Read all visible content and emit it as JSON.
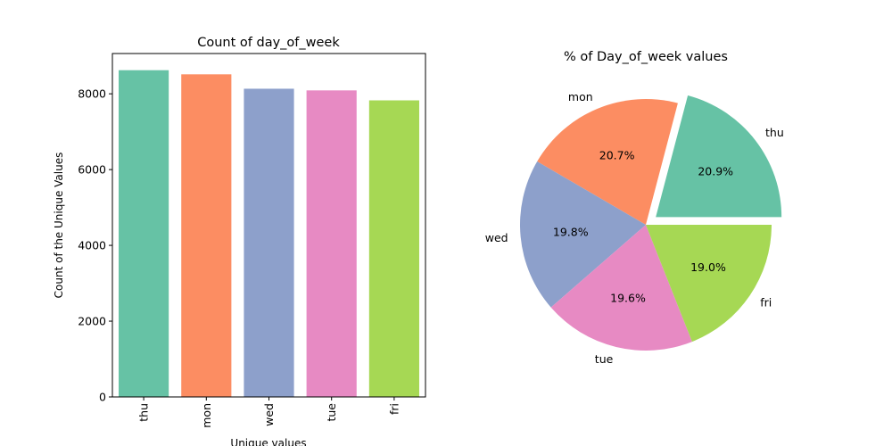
{
  "chart_data": [
    {
      "type": "bar",
      "title": "Count of day_of_week",
      "xlabel": "Unique values",
      "ylabel": "Count of the Unique Values",
      "categories": [
        "thu",
        "mon",
        "wed",
        "tue",
        "fri"
      ],
      "values": [
        8623,
        8514,
        8134,
        8090,
        7827
      ],
      "ylim": [
        0,
        9063
      ],
      "yticks": [
        0,
        2000,
        4000,
        6000,
        8000
      ],
      "ytick_labels": [
        "0",
        "2000",
        "4000",
        "6000",
        "8000"
      ],
      "colors": [
        "#66c2a5",
        "#fc8d62",
        "#8da0cb",
        "#e78ac3",
        "#a6d854"
      ],
      "grid": false
    },
    {
      "type": "pie",
      "title": "% of Day_of_week values",
      "labels": [
        "thu",
        "mon",
        "wed",
        "tue",
        "fri"
      ],
      "values": [
        20.9,
        20.7,
        19.8,
        19.6,
        19.0
      ],
      "value_labels": [
        "20.9%",
        "20.7%",
        "19.8%",
        "19.6%",
        "19.0%"
      ],
      "explode": [
        0.1,
        0,
        0,
        0,
        0
      ],
      "colors": [
        "#66c2a5",
        "#fc8d62",
        "#8da0cb",
        "#e78ac3",
        "#a6d854"
      ],
      "start_angle_deg": 0,
      "direction": "counterclockwise"
    }
  ]
}
